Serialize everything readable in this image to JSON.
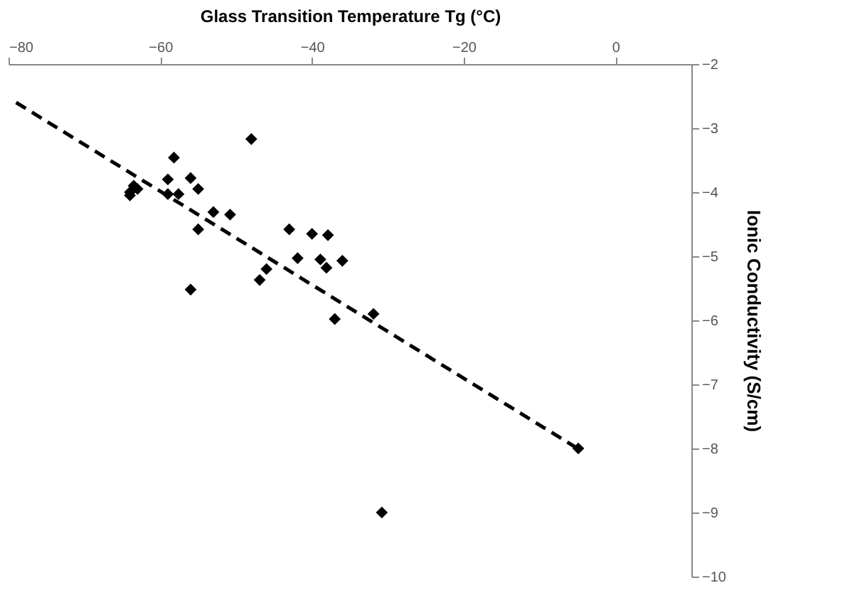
{
  "chart_data": {
    "type": "scatter",
    "xlabel": "Glass Transition Temperature Tg (°C)",
    "ylabel": "Ionic Conductivity (S/cm)",
    "xlim": [
      -80,
      10
    ],
    "xticks": [
      -80,
      -60,
      -40,
      -20,
      0
    ],
    "ylim": [
      -10,
      -2
    ],
    "yticks": [
      -10,
      -9,
      -8,
      -7,
      -6,
      -5,
      -4,
      -3,
      -2
    ],
    "grid": false,
    "marker": "diamond",
    "series": [
      {
        "color": "#000000",
        "x": [
          -48,
          -58.2,
          -64,
          -63.5,
          -63,
          -64,
          -59,
          -59,
          -57.6,
          -56,
          -55,
          -53,
          -50.8,
          -55,
          -56,
          -43,
          -40,
          -37.9,
          -41.9,
          -38.9,
          -38.1,
          -36,
          -46,
          -46.9,
          -37,
          -31.9,
          -4.9,
          -30.8
        ],
        "values": [
          -3.17,
          -3.46,
          -4.05,
          -3.9,
          -3.95,
          -4.0,
          -3.8,
          -4.03,
          -4.03,
          -3.78,
          -3.95,
          -4.31,
          -4.35,
          -4.58,
          -5.52,
          -4.58,
          -4.65,
          -4.67,
          -5.03,
          -5.05,
          -5.18,
          -5.07,
          -5.2,
          -5.37,
          -5.98,
          -5.9,
          -8.0,
          -9.0
        ]
      },
      {
        "type": "line",
        "color": "#000000",
        "line_style": "dashed",
        "marker": "none",
        "x": [
          -79,
          -5
        ],
        "values": [
          -2.6,
          -8.0
        ]
      }
    ]
  }
}
